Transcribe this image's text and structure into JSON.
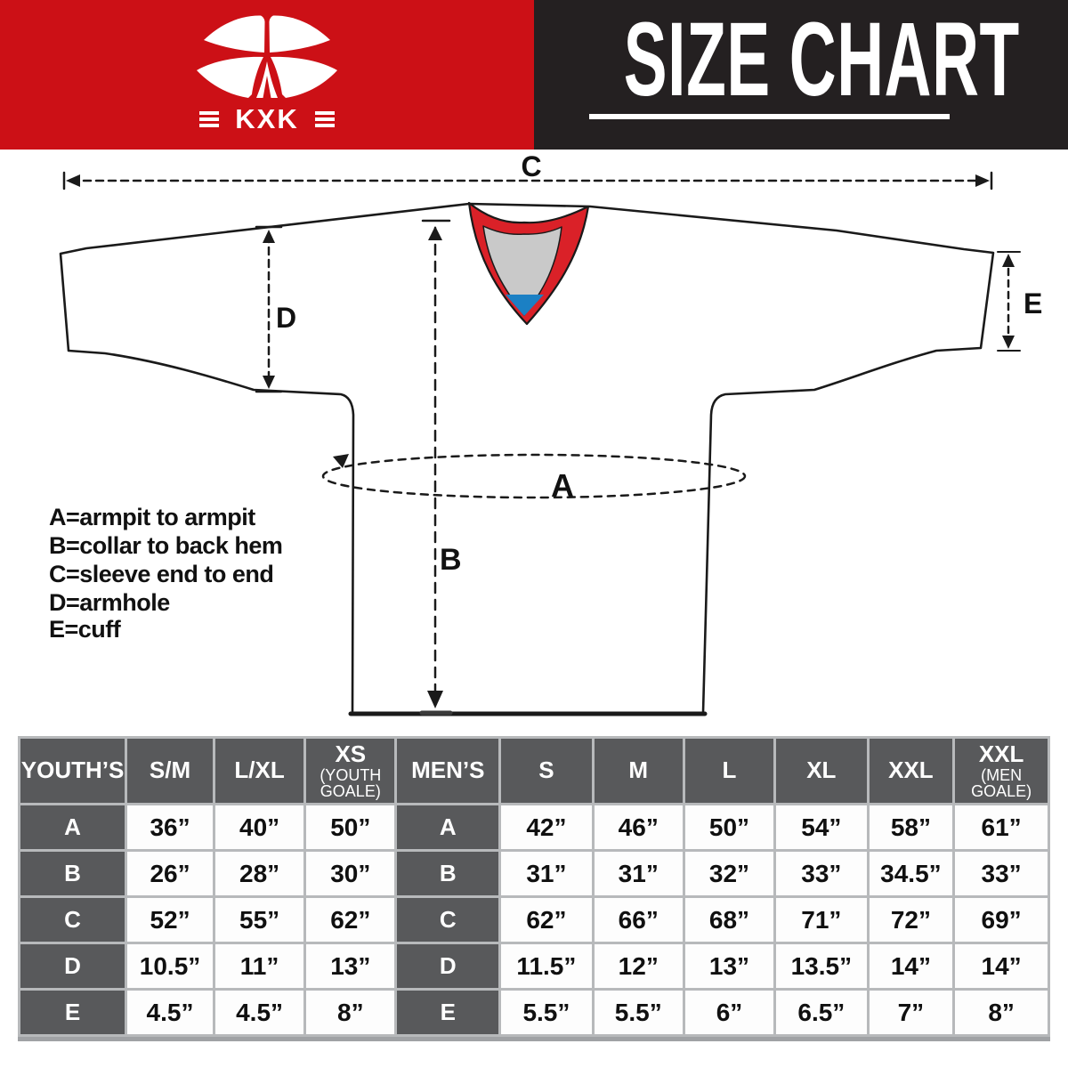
{
  "header": {
    "brand": "KXK",
    "title": "SIZE CHART"
  },
  "colors": {
    "header_red": "#cc1016",
    "header_black": "#242021",
    "collar_red": "#da2128",
    "collar_gray": "#c9c9c9",
    "collar_blue": "#1b80c4",
    "table_header_gray": "#58595b",
    "grid_gray": "#b7b9bb",
    "line_black": "#1a1a1a"
  },
  "diagram_labels": {
    "a": "A",
    "b": "B",
    "c": "C",
    "d": "D",
    "e": "E"
  },
  "legend": {
    "lines": [
      "A=armpit to armpit",
      "B=collar to back hem",
      "C=sleeve end to end",
      "D=armhole",
      "E=cuff"
    ]
  },
  "size_table": {
    "youth": {
      "label": "YOUTH’S",
      "columns": [
        {
          "main": "S/M"
        },
        {
          "main": "L/XL"
        },
        {
          "main": "XS",
          "note": "(YOUTH GOALE)"
        }
      ]
    },
    "men": {
      "label": "MEN’S",
      "columns": [
        {
          "main": "S"
        },
        {
          "main": "M"
        },
        {
          "main": "L"
        },
        {
          "main": "XL"
        },
        {
          "main": "XXL"
        },
        {
          "main": "XXL",
          "note": "(MEN GOALE)"
        }
      ]
    },
    "rows": [
      {
        "label": "A",
        "youth": [
          "36”",
          "40”",
          "50”"
        ],
        "men": [
          "42”",
          "46”",
          "50”",
          "54”",
          "58”",
          "61”"
        ]
      },
      {
        "label": "B",
        "youth": [
          "26”",
          "28”",
          "30”"
        ],
        "men": [
          "31”",
          "31”",
          "32”",
          "33”",
          "34.5”",
          "33”"
        ]
      },
      {
        "label": "C",
        "youth": [
          "52”",
          "55”",
          "62”"
        ],
        "men": [
          "62”",
          "66”",
          "68”",
          "71”",
          "72”",
          "69”"
        ]
      },
      {
        "label": "D",
        "youth": [
          "10.5”",
          "11”",
          "13”"
        ],
        "men": [
          "11.5”",
          "12”",
          "13”",
          "13.5”",
          "14”",
          "14”"
        ]
      },
      {
        "label": "E",
        "youth": [
          "4.5”",
          "4.5”",
          "8”"
        ],
        "men": [
          "5.5”",
          "5.5”",
          "6”",
          "6.5”",
          "7”",
          "8”"
        ]
      }
    ]
  }
}
